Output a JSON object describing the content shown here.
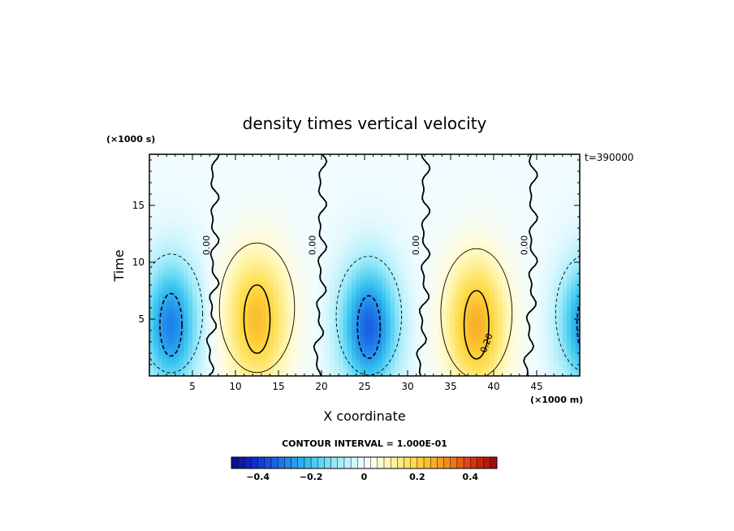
{
  "chart_data": {
    "type": "heatmap",
    "title": "density times vertical velocity",
    "xlabel": "X coordinate",
    "ylabel": "Time",
    "x_multiplier_label": "(×1000 m)",
    "y_multiplier_label": "(×1000 s)",
    "time_annotation": "t=390000",
    "xlim": [
      0,
      50
    ],
    "ylim": [
      0,
      19.5
    ],
    "x_ticks": [
      5,
      10,
      15,
      20,
      25,
      30,
      35,
      40,
      45
    ],
    "y_ticks": [
      5,
      10,
      15
    ],
    "x_tick_labels": [
      "5",
      "10",
      "15",
      "20",
      "25",
      "30",
      "35",
      "40",
      "45"
    ],
    "y_tick_labels": [
      "5",
      "10",
      "15"
    ],
    "contour_interval_label": "CONTOUR INTERVAL = 1.000E-01",
    "contour_labels": [
      "0.00",
      "0.00",
      "0.00",
      "0.00",
      "0.20"
    ],
    "colorbar": {
      "range": [
        -0.5,
        0.5
      ],
      "ticks": [
        -0.4,
        -0.2,
        0,
        0.2,
        0.4
      ],
      "tick_labels": [
        "−0.4",
        "−0.2",
        "0",
        "0.2",
        "0.4"
      ]
    },
    "cells": [
      {
        "x": 2.5,
        "t": 4.5,
        "sx": 3.2,
        "st": 5.5,
        "amp": -0.3
      },
      {
        "x": 12.5,
        "t": 5.0,
        "sx": 3.8,
        "st": 6.0,
        "amp": 0.24
      },
      {
        "x": 25.5,
        "t": 4.3,
        "sx": 3.3,
        "st": 5.5,
        "amp": -0.34
      },
      {
        "x": 38.0,
        "t": 4.5,
        "sx": 3.6,
        "st": 6.0,
        "amp": 0.26
      },
      {
        "x": 51.0,
        "t": 4.5,
        "sx": 3.3,
        "st": 5.5,
        "amp": -0.3
      }
    ],
    "zero_contour_x": [
      7.5,
      20.0,
      32.0,
      44.5
    ]
  }
}
